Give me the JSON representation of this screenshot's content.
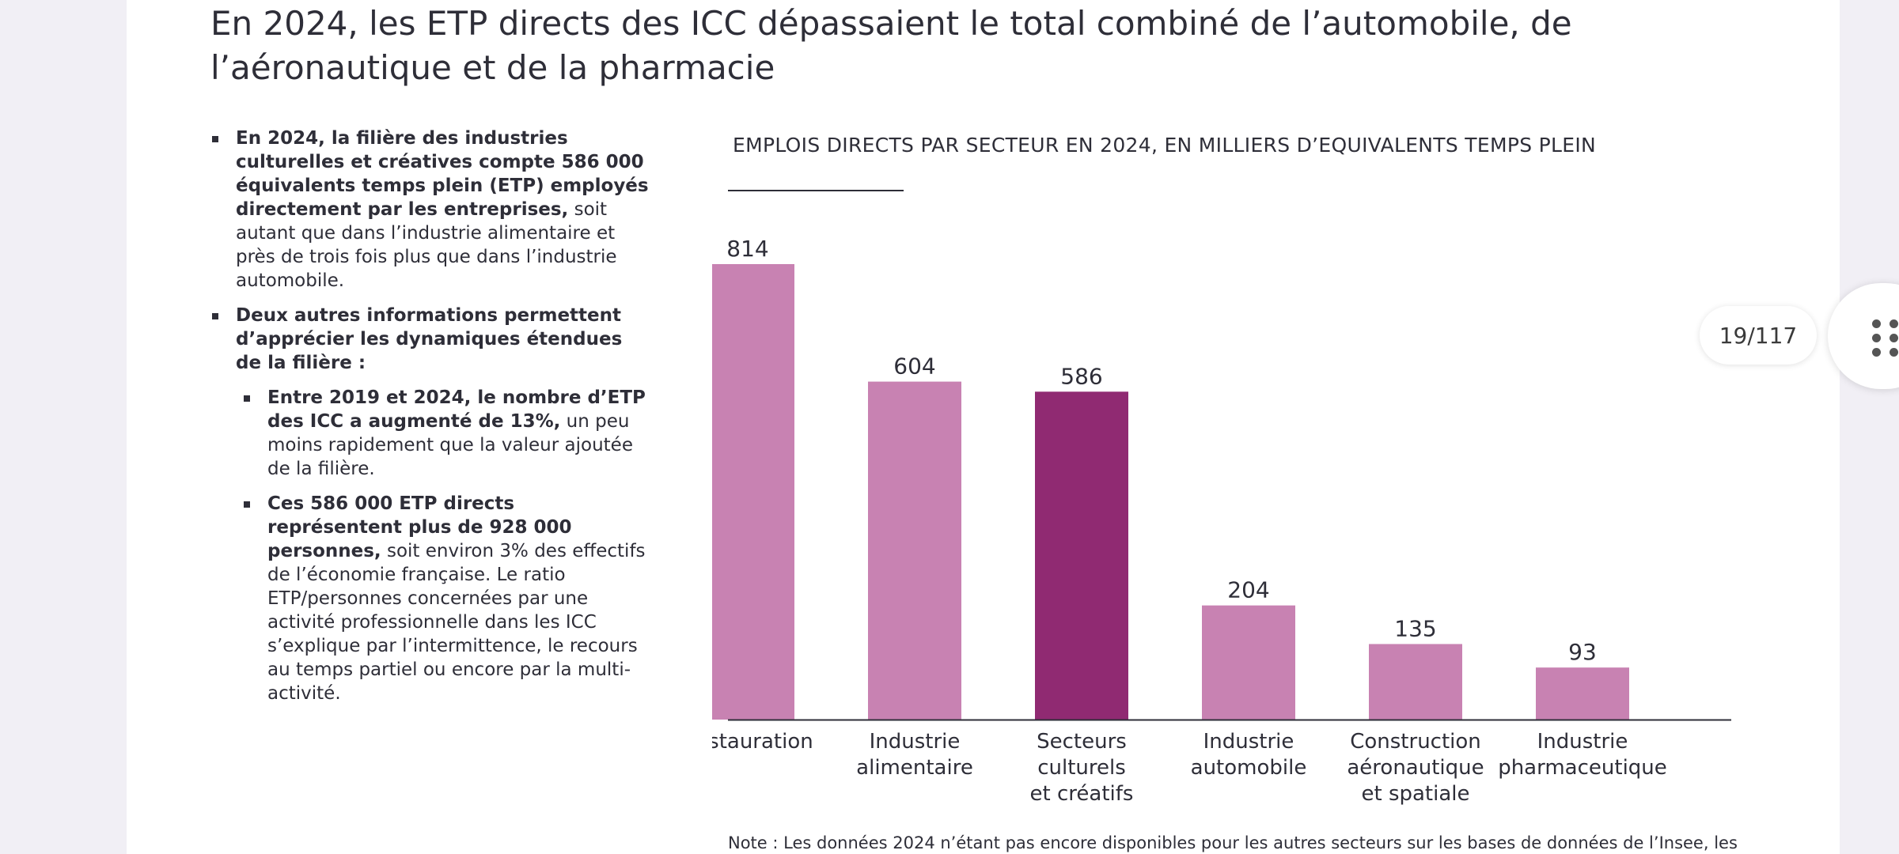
{
  "page": {
    "title": "En 2024, les ETP directs des ICC dépassaient le total combiné de l’automobile, de l’aéronautique et de la pharmacie",
    "counter": "19/117",
    "note": "Note : Les données 2024 n’étant pas encore disponibles pour les autres secteurs sur les bases de données de l’Insee, les"
  },
  "bullets": {
    "b1_bold": "En 2024, la filière des industries culturelles et créatives compte 586 000 équivalents temps plein (ETP) employés directement par les entreprises,",
    "b1_rest": " soit autant que dans l’industrie alimentaire et près de trois fois plus que dans l’industrie automobile.",
    "b2_bold": "Deux autres informations permettent d’apprécier les dynamiques étendues de la filière :",
    "sub1_bold": "Entre 2019 et 2024, le nombre d’ETP des ICC a augmenté de 13%,",
    "sub1_rest": " un peu moins rapidement que la valeur ajoutée de la filière.",
    "sub2_bold": "Ces 586 000 ETP directs représentent plus de 928 000 personnes,",
    "sub2_rest": " soit environ 3% des effectifs de l’économie française. Le ratio ETP/personnes concernées par une activité professionnelle dans les ICC s’explique par l’intermittence, le recours au temps partiel ou encore par la multi-activité."
  },
  "chart_data": {
    "type": "bar",
    "title": "EMPLOIS DIRECTS PAR SECTEUR EN 2024, EN MILLIERS D’EQUIVALENTS TEMPS PLEIN",
    "categories": [
      [
        "Restauration"
      ],
      [
        "Industrie",
        "alimentaire"
      ],
      [
        "Secteurs",
        "culturels",
        "et créatifs"
      ],
      [
        "Industrie",
        "automobile"
      ],
      [
        "Construction",
        "aéronautique",
        "et spatiale"
      ],
      [
        "Industrie",
        "pharmaceutique"
      ]
    ],
    "values": [
      814,
      604,
      586,
      204,
      135,
      93
    ],
    "highlight_index": 2,
    "ylim": [
      0,
      900
    ],
    "colors": {
      "bar": "#c882b2",
      "highlight": "#902a72",
      "axis": "#2e2e38"
    }
  }
}
